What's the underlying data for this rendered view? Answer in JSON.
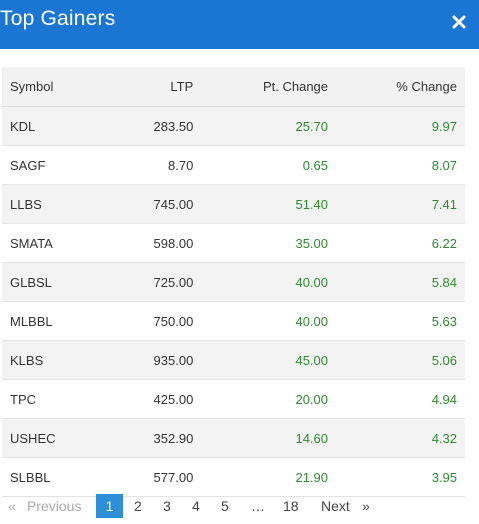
{
  "header": {
    "title": "Top Gainers"
  },
  "table": {
    "headers": [
      "Symbol",
      "LTP",
      "Pt. Change",
      "% Change"
    ],
    "rows": [
      [
        "KDL",
        "283.50",
        "25.70",
        "9.97"
      ],
      [
        "SAGF",
        "8.70",
        "0.65",
        "8.07"
      ],
      [
        "LLBS",
        "745.00",
        "51.40",
        "7.41"
      ],
      [
        "SMATA",
        "598.00",
        "35.00",
        "6.22"
      ],
      [
        "GLBSL",
        "725.00",
        "40.00",
        "5.84"
      ],
      [
        "MLBBL",
        "750.00",
        "40.00",
        "5.63"
      ],
      [
        "KLBS",
        "935.00",
        "45.00",
        "5.06"
      ],
      [
        "TPC",
        "425.00",
        "20.00",
        "4.94"
      ],
      [
        "USHEC",
        "352.90",
        "14.60",
        "4.32"
      ],
      [
        "SLBBL",
        "577.00",
        "21.90",
        "3.95"
      ]
    ]
  },
  "pagination": {
    "prev_arrow": "«",
    "previous": "Previous",
    "pages": [
      "1",
      "2",
      "3",
      "4",
      "5"
    ],
    "ellipsis": "…",
    "last": "18",
    "next": "Next",
    "next_arrow": "»"
  },
  "colors": {
    "header_bg": "#1a76d2",
    "positive": "#2e8b2e",
    "active_page": "#2d8fd8"
  },
  "icons": {
    "close": "close-icon"
  }
}
